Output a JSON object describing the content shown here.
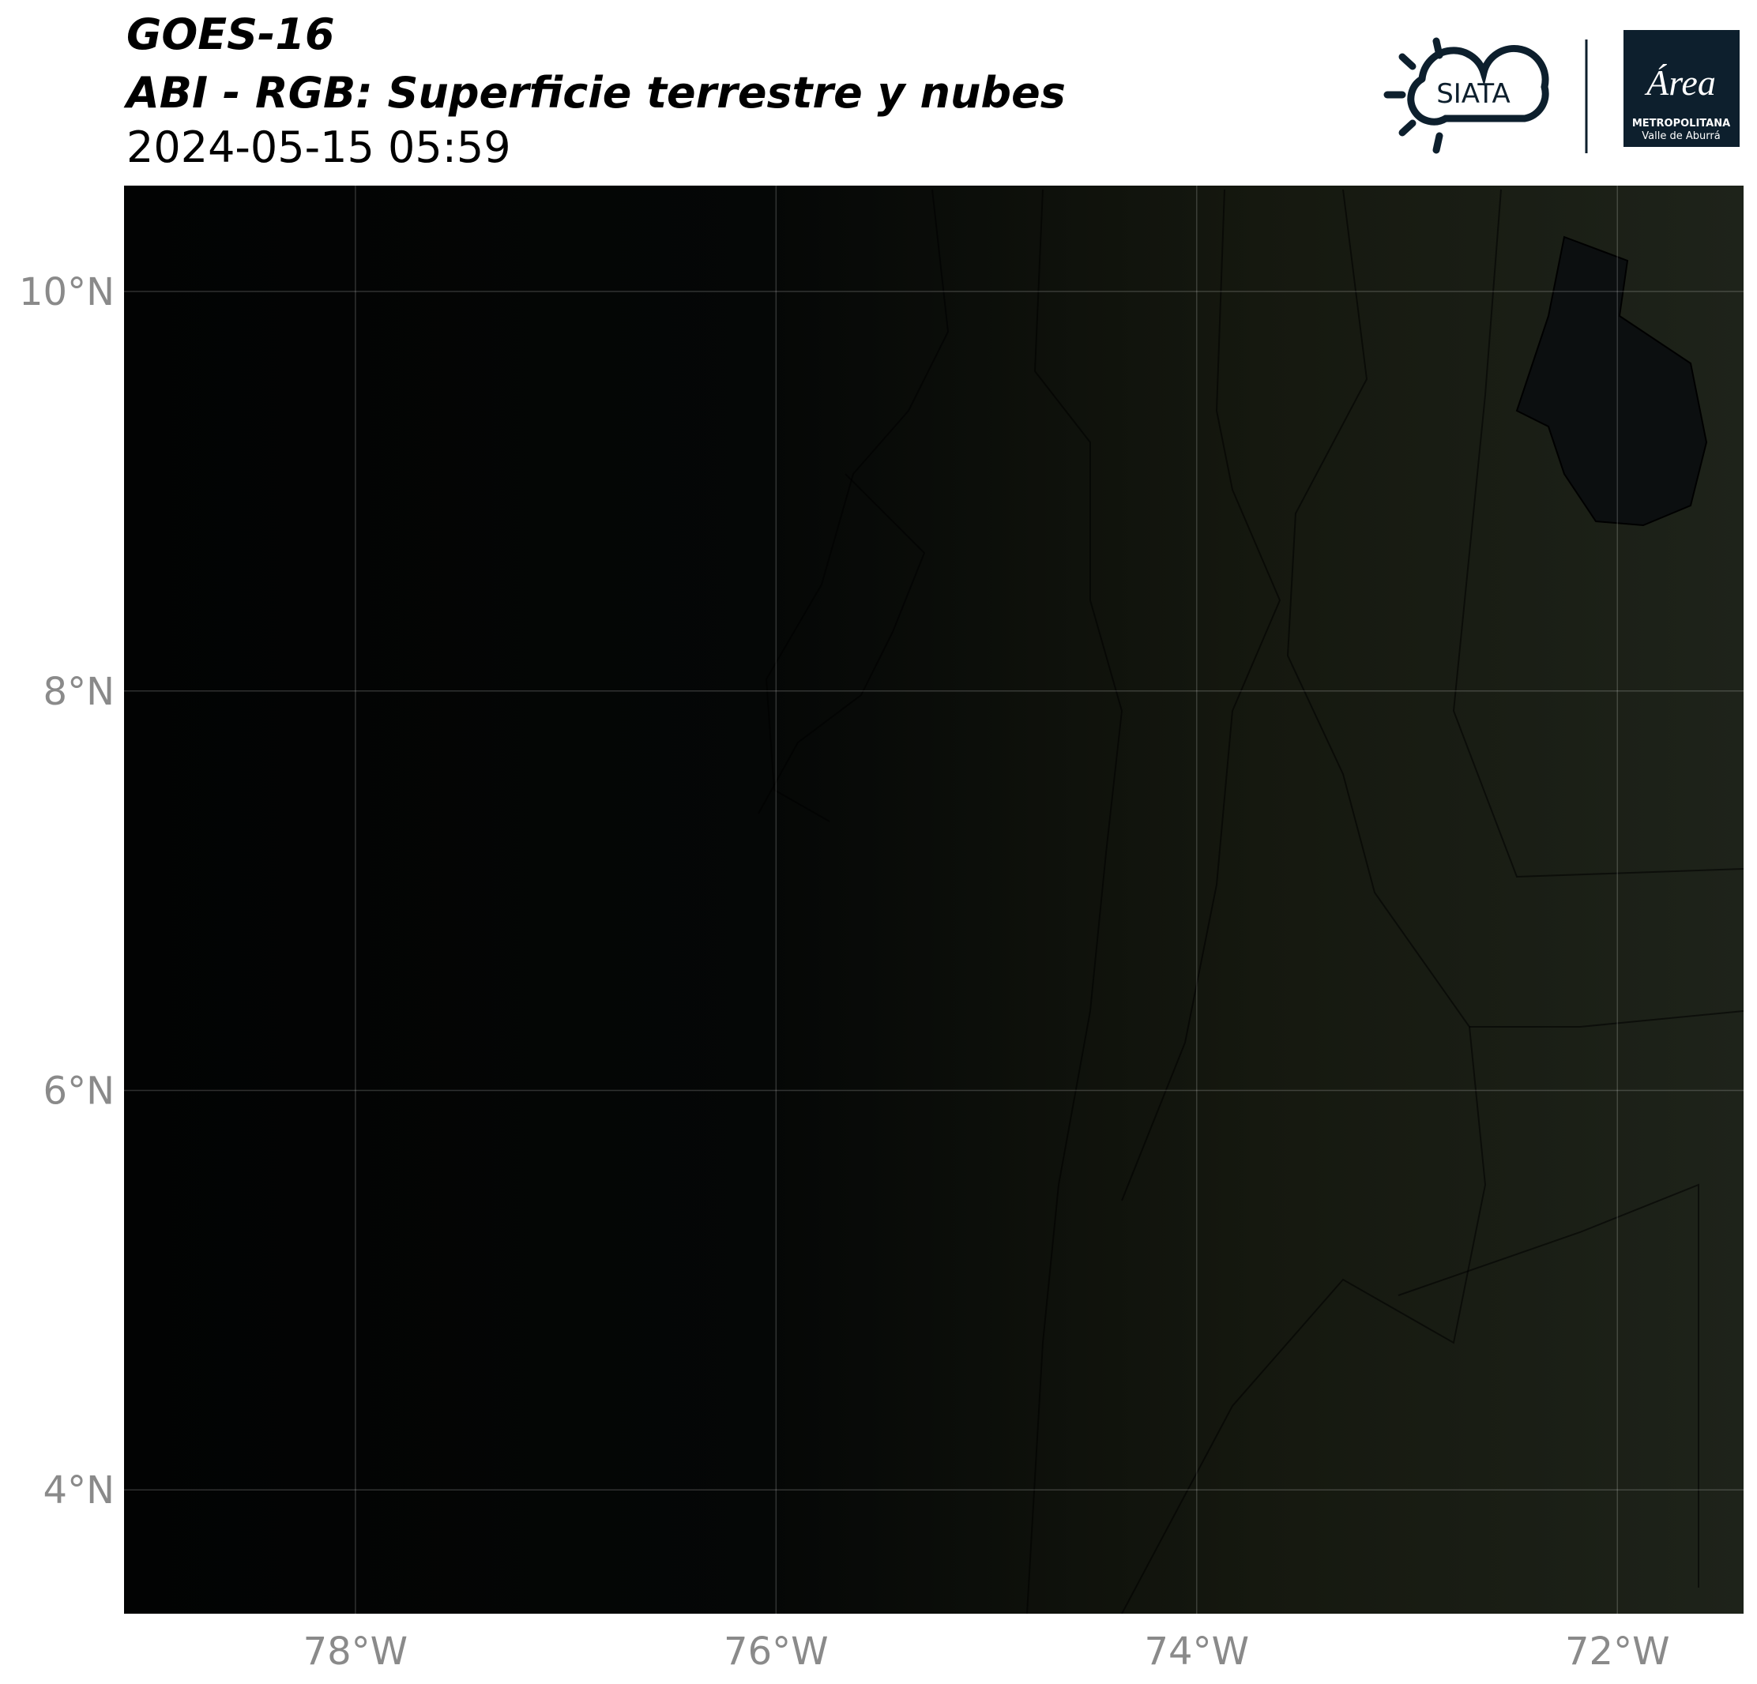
{
  "header": {
    "title": "GOES-16",
    "subtitle": "ABI - RGB: Superficie terrestre y nubes",
    "date": "2024-05-15 05:59"
  },
  "logos": {
    "siata": "SIATA",
    "area": "Área",
    "area_name": "METROPOLITANA",
    "area_place": "Valle de Aburrá"
  },
  "chart_data": {
    "type": "map",
    "xlim": [
      -79.1,
      -71.4
    ],
    "ylim": [
      3.38,
      10.53
    ],
    "xticks": [
      {
        "value": -78,
        "label": "78°W"
      },
      {
        "value": -76,
        "label": "76°W"
      },
      {
        "value": -74,
        "label": "74°W"
      },
      {
        "value": -72,
        "label": "72°W"
      }
    ],
    "yticks": [
      {
        "value": 4,
        "label": "4°N"
      },
      {
        "value": 6,
        "label": "6°N"
      },
      {
        "value": 8,
        "label": "8°N"
      },
      {
        "value": 10,
        "label": "10°N"
      }
    ],
    "grid": true
  }
}
